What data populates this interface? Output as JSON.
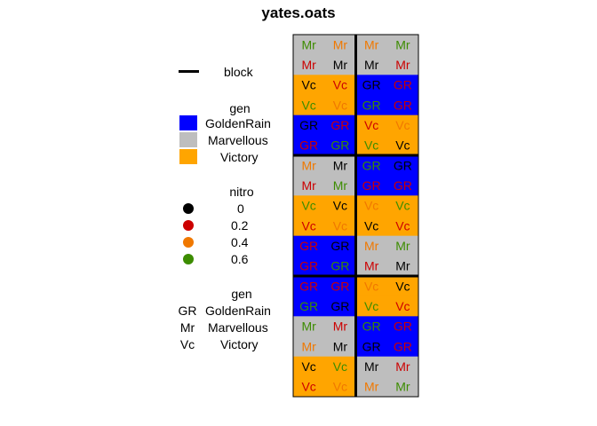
{
  "chart_data": {
    "type": "table",
    "title": "yates.oats",
    "legend_block": {
      "title": "",
      "label": "block"
    },
    "legend_gen_fill": {
      "title": "gen",
      "items": [
        {
          "label": "GoldenRain",
          "color": "#0000FF"
        },
        {
          "label": "Marvellous",
          "color": "#BEBEBE"
        },
        {
          "label": "Victory",
          "color": "#FFA500"
        }
      ]
    },
    "legend_nitro": {
      "title": "nitro",
      "items": [
        {
          "label": "0",
          "color": "#000000"
        },
        {
          "label": "0.2",
          "color": "#CC0000"
        },
        {
          "label": "0.4",
          "color": "#F07800"
        },
        {
          "label": "0.6",
          "color": "#3C8C00"
        }
      ]
    },
    "legend_gen_abbrev": {
      "title": "gen",
      "items": [
        {
          "code": "GR",
          "label": "GoldenRain"
        },
        {
          "code": "Mr",
          "label": "Marvellous"
        },
        {
          "code": "Vc",
          "label": "Victory"
        }
      ]
    },
    "gen_colors": {
      "GR": "#0000FF",
      "Mr": "#BEBEBE",
      "Vc": "#FFA500"
    },
    "nitro_colors": {
      "0": "#000000",
      "0.2": "#CC0000",
      "0.4": "#F07800",
      "0.6": "#3C8C00"
    },
    "rows": 18,
    "cols": 4,
    "cells": [
      [
        [
          "Mr",
          "0.6"
        ],
        [
          "Mr",
          "0.4"
        ],
        [
          "Mr",
          "0.4"
        ],
        [
          "Mr",
          "0.6"
        ]
      ],
      [
        [
          "Mr",
          "0.2"
        ],
        [
          "Mr",
          "0"
        ],
        [
          "Mr",
          "0"
        ],
        [
          "Mr",
          "0.2"
        ]
      ],
      [
        [
          "Vc",
          "0"
        ],
        [
          "Vc",
          "0.2"
        ],
        [
          "GR",
          "0"
        ],
        [
          "GR",
          "0.2"
        ]
      ],
      [
        [
          "Vc",
          "0.6"
        ],
        [
          "Vc",
          "0.4"
        ],
        [
          "GR",
          "0.6"
        ],
        [
          "GR",
          "0.2"
        ]
      ],
      [
        [
          "GR",
          "0"
        ],
        [
          "GR",
          "0.2"
        ],
        [
          "Vc",
          "0.2"
        ],
        [
          "Vc",
          "0.4"
        ]
      ],
      [
        [
          "GR",
          "0.2"
        ],
        [
          "GR",
          "0.6"
        ],
        [
          "Vc",
          "0.6"
        ],
        [
          "Vc",
          "0"
        ]
      ],
      [
        [
          "Mr",
          "0.4"
        ],
        [
          "Mr",
          "0"
        ],
        [
          "GR",
          "0.6"
        ],
        [
          "GR",
          "0"
        ]
      ],
      [
        [
          "Mr",
          "0.2"
        ],
        [
          "Mr",
          "0.6"
        ],
        [
          "GR",
          "0.2"
        ],
        [
          "GR",
          "0.2"
        ]
      ],
      [
        [
          "Vc",
          "0.6"
        ],
        [
          "Vc",
          "0"
        ],
        [
          "Vc",
          "0.4"
        ],
        [
          "Vc",
          "0.6"
        ]
      ],
      [
        [
          "Vc",
          "0.2"
        ],
        [
          "Vc",
          "0.4"
        ],
        [
          "Vc",
          "0"
        ],
        [
          "Vc",
          "0.2"
        ]
      ],
      [
        [
          "GR",
          "0.2"
        ],
        [
          "GR",
          "0"
        ],
        [
          "Mr",
          "0.4"
        ],
        [
          "Mr",
          "0.6"
        ]
      ],
      [
        [
          "GR",
          "0.2"
        ],
        [
          "GR",
          "0.6"
        ],
        [
          "Mr",
          "0.2"
        ],
        [
          "Mr",
          "0"
        ]
      ],
      [
        [
          "GR",
          "0.2"
        ],
        [
          "GR",
          "0.2"
        ],
        [
          "Vc",
          "0.4"
        ],
        [
          "Vc",
          "0"
        ]
      ],
      [
        [
          "GR",
          "0.6"
        ],
        [
          "GR",
          "0"
        ],
        [
          "Vc",
          "0.6"
        ],
        [
          "Vc",
          "0.2"
        ]
      ],
      [
        [
          "Mr",
          "0.6"
        ],
        [
          "Mr",
          "0.2"
        ],
        [
          "GR",
          "0.6"
        ],
        [
          "GR",
          "0.2"
        ]
      ],
      [
        [
          "Mr",
          "0.4"
        ],
        [
          "Mr",
          "0"
        ],
        [
          "GR",
          "0"
        ],
        [
          "GR",
          "0.2"
        ]
      ],
      [
        [
          "Vc",
          "0"
        ],
        [
          "Vc",
          "0.6"
        ],
        [
          "Mr",
          "0"
        ],
        [
          "Mr",
          "0.2"
        ]
      ],
      [
        [
          "Vc",
          "0.2"
        ],
        [
          "Vc",
          "0.4"
        ],
        [
          "Mr",
          "0.4"
        ],
        [
          "Mr",
          "0.6"
        ]
      ]
    ],
    "block_boundaries_after_rows": [
      5,
      11
    ],
    "block_divider_after_col": 1
  }
}
